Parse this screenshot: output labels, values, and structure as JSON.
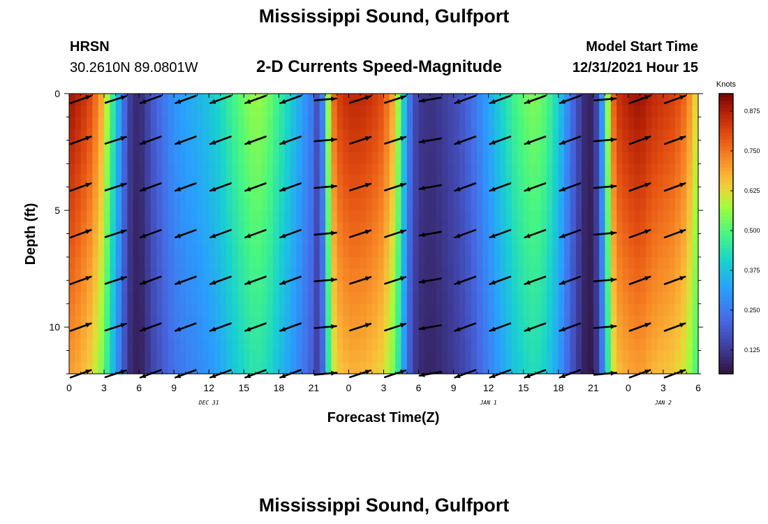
{
  "page": {
    "title": "Mississippi Sound, Gulfport",
    "station_id": "HRSN",
    "station_coords": "30.2610N  89.0801W",
    "plot_subtitle": "2-D Currents Speed-Magnitude",
    "model_start_label": "Model Start Time",
    "model_start_value": "12/31/2021 Hour 15",
    "footer_title": "Mississippi Sound, Gulfport"
  },
  "chart_data": {
    "type": "heatmap",
    "title": "2-D Currents Speed-Magnitude",
    "xlabel": "Forecast Time(Z)",
    "ylabel": "Depth (ft)",
    "x_hours_range": [
      0,
      54
    ],
    "ylim": [
      0,
      12
    ],
    "x_tick_labels": [
      "0",
      "3",
      "6",
      "9",
      "12",
      "15",
      "18",
      "21",
      "0",
      "3",
      "6",
      "9",
      "12",
      "15",
      "18",
      "21",
      "0",
      "3",
      "6"
    ],
    "y_ticks": [
      0,
      5,
      10
    ],
    "date_labels": [
      {
        "label": "DEC 31",
        "hour": 12
      },
      {
        "label": "JAN 1",
        "hour": 36
      },
      {
        "label": "JAN 2",
        "hour": 51
      }
    ],
    "colorbar": {
      "unit": "Knots",
      "min": 0.05,
      "max": 0.93,
      "ticks": [
        "0.125",
        "0.250",
        "0.375",
        "0.500",
        "0.625",
        "0.750",
        "0.875"
      ],
      "tick_values": [
        0.125,
        0.25,
        0.375,
        0.5,
        0.625,
        0.75,
        0.875
      ]
    },
    "time_profile": {
      "hours": [
        0,
        1,
        2,
        3,
        3.5,
        4,
        4.5,
        5,
        5.5,
        6,
        6.5,
        7,
        8,
        9,
        10,
        11,
        12,
        13,
        14,
        15,
        16,
        17,
        18,
        19,
        20,
        21,
        21.5,
        22,
        22.5,
        23,
        24,
        25,
        26,
        27,
        28,
        28.5,
        29,
        29.5,
        30,
        31,
        32,
        33,
        34,
        35,
        36,
        37,
        38,
        39,
        40,
        41,
        42,
        43,
        44,
        44.5,
        45,
        45.5,
        46,
        46.5,
        47,
        48,
        49,
        50,
        51,
        52,
        53,
        54
      ],
      "speed_knots": [
        0.9,
        0.86,
        0.8,
        0.66,
        0.52,
        0.4,
        0.28,
        0.16,
        0.1,
        0.1,
        0.12,
        0.18,
        0.24,
        0.3,
        0.33,
        0.35,
        0.38,
        0.42,
        0.48,
        0.53,
        0.57,
        0.54,
        0.47,
        0.4,
        0.32,
        0.24,
        0.12,
        0.42,
        0.72,
        0.82,
        0.86,
        0.86,
        0.84,
        0.8,
        0.66,
        0.48,
        0.3,
        0.18,
        0.13,
        0.11,
        0.13,
        0.16,
        0.2,
        0.26,
        0.33,
        0.4,
        0.47,
        0.52,
        0.55,
        0.5,
        0.4,
        0.25,
        0.12,
        0.08,
        0.09,
        0.2,
        0.42,
        0.72,
        0.84,
        0.88,
        0.9,
        0.86,
        0.84,
        0.82,
        0.76,
        0.6
      ]
    },
    "vectors": {
      "hours": [
        1,
        4,
        7,
        10,
        13,
        16,
        19,
        22,
        25,
        28,
        31,
        34,
        37,
        40,
        43,
        46,
        49,
        52
      ],
      "depths_ft": [
        0.25,
        2,
        4,
        6,
        8,
        10,
        12
      ],
      "direction_deg": [
        20,
        18,
        200,
        200,
        200,
        200,
        200,
        5,
        18,
        18,
        190,
        200,
        200,
        200,
        200,
        5,
        20,
        20
      ],
      "direction_note": "Arrow heading in image space: 0 = pointing right, angles measured counterclockwise"
    }
  }
}
